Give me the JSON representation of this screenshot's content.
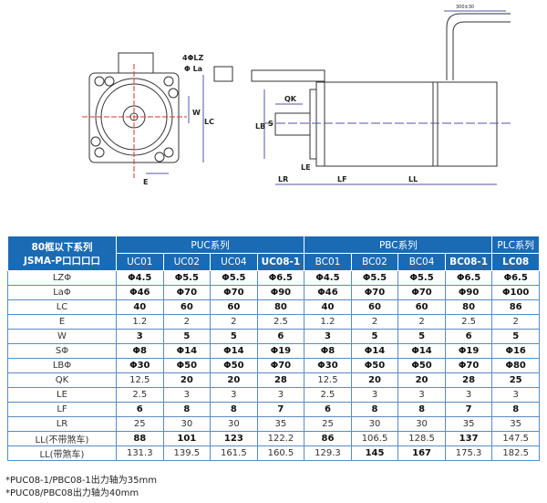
{
  "drawing": {
    "labels": {
      "lz": "4ΦLZ",
      "la": "Φ La",
      "w": "W",
      "lc": "LC",
      "e": "E",
      "qk": "QK",
      "lb": "LB",
      "s": "S",
      "le": "LE",
      "lr": "LR",
      "lf": "LF",
      "ll": "LL",
      "cable": "300±30"
    }
  },
  "table": {
    "corner": [
      "80框以下系列",
      "JSMA-P口口口口"
    ],
    "groups": [
      "PUC系列",
      "PBC系列",
      "PLC系列"
    ],
    "models": [
      "UC01",
      "UC02",
      "UC04",
      "UC08-1",
      "BC01",
      "BC02",
      "BC04",
      "BC08-1",
      "LC08"
    ],
    "rows": [
      {
        "label": "LZΦ",
        "values": [
          "Φ4.5",
          "Φ5.5",
          "Φ5.5",
          "Φ6.5",
          "Φ4.5",
          "Φ5.5",
          "Φ5.5",
          "Φ6.5",
          "Φ6.5"
        ]
      },
      {
        "label": "LaΦ",
        "values": [
          "Φ46",
          "Φ70",
          "Φ70",
          "Φ90",
          "Φ46",
          "Φ70",
          "Φ70",
          "Φ90",
          "Φ100"
        ]
      },
      {
        "label": "LC",
        "values": [
          "40",
          "60",
          "60",
          "80",
          "40",
          "60",
          "60",
          "80",
          "86"
        ]
      },
      {
        "label": "E",
        "values": [
          "1.2",
          "2",
          "2",
          "2.5",
          "1.2",
          "2",
          "2",
          "2.5",
          "2"
        ]
      },
      {
        "label": "W",
        "values": [
          "3",
          "5",
          "5",
          "6",
          "3",
          "5",
          "5",
          "6",
          "5"
        ]
      },
      {
        "label": "SΦ",
        "values": [
          "Φ8",
          "Φ14",
          "Φ14",
          "Φ19",
          "Φ8",
          "Φ14",
          "Φ14",
          "Φ19",
          "Φ16"
        ]
      },
      {
        "label": "LBΦ",
        "values": [
          "Φ30",
          "Φ50",
          "Φ50",
          "Φ70",
          "Φ30",
          "Φ50",
          "Φ50",
          "Φ70",
          "Φ80"
        ]
      },
      {
        "label": "QK",
        "values": [
          "12.5",
          "20",
          "20",
          "28",
          "12.5",
          "20",
          "20",
          "28",
          "25"
        ]
      },
      {
        "label": "LE",
        "values": [
          "2.5",
          "3",
          "3",
          "3",
          "2.5",
          "3",
          "3",
          "3",
          "3"
        ]
      },
      {
        "label": "LF",
        "values": [
          "6",
          "8",
          "8",
          "7",
          "6",
          "8",
          "8",
          "7",
          "8"
        ]
      },
      {
        "label": "LR",
        "values": [
          "25",
          "30",
          "30",
          "35",
          "25",
          "30",
          "30",
          "35",
          "35"
        ]
      },
      {
        "label": "LL(不带煞车)",
        "values": [
          "88",
          "101",
          "123",
          "122.2",
          "86",
          "106.5",
          "128.5",
          "137",
          "147.5"
        ]
      },
      {
        "label": "LL(带煞车)",
        "values": [
          "131.3",
          "139.5",
          "161.5",
          "160.5",
          "129.3",
          "145",
          "167",
          "175.3",
          "182.5"
        ]
      }
    ]
  },
  "notes": [
    "*PUC08-1/PBC08-1出力轴为35mm",
    "*PUC08/PBC08出力轴为40mm"
  ]
}
